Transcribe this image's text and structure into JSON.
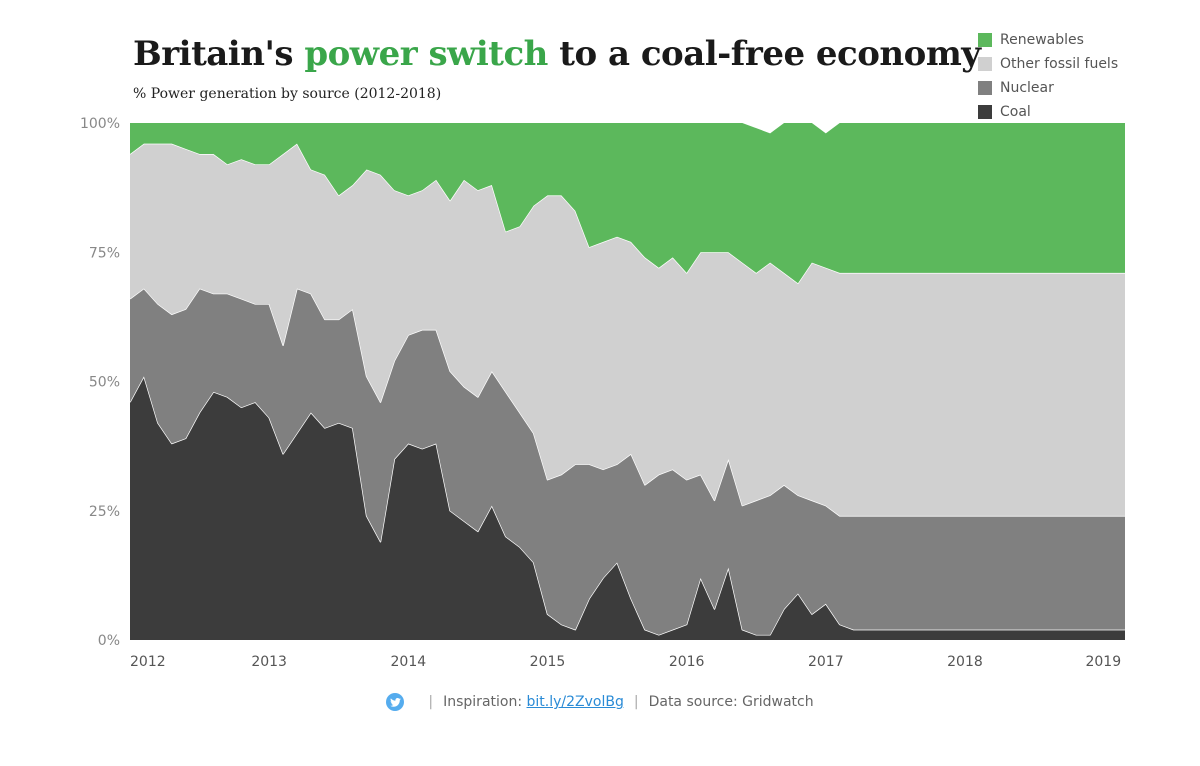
{
  "title": {
    "prefix": "Britain's",
    "highlight": "power switch",
    "suffix": "to a coal-free economy"
  },
  "colors": {
    "renewables": "#5cb85c",
    "other": "#d0d0d0",
    "nuclear": "#808080",
    "coal": "#3c3c3c",
    "highlight": "#3aa64a",
    "twitter": "#55acee"
  },
  "footer": {
    "twitter_icon": "twitter-bird-icon",
    "inspiration_label": "Inspiration:",
    "inspiration_link": "bit.ly/2ZvolBg",
    "separator": "|",
    "source_text": "Data source: Gridwatch"
  },
  "chart_data": {
    "type": "area",
    "stacked": true,
    "title": "Britain's power switch to a coal-free economy",
    "subtitle": "% Power generation by source (2012-2018)",
    "xlim": [
      2012,
      2019.15
    ],
    "ylim": [
      0,
      100
    ],
    "ytick_values": [
      0,
      25,
      50,
      75,
      100
    ],
    "ytick_labels": [
      "0%",
      "25%",
      "50%",
      "75%",
      "100%"
    ],
    "xtick_values": [
      2012,
      2013,
      2014,
      2015,
      2016,
      2017,
      2018,
      2019
    ],
    "xtick_labels": [
      "2012",
      "2013",
      "2014",
      "2015",
      "2016",
      "2017",
      "2018",
      "2019"
    ],
    "legend_position": "top-right",
    "legend_order": [
      "Renewables",
      "Other fossil fuels",
      "Nuclear",
      "Coal"
    ],
    "x": [
      2012.0,
      2012.1,
      2012.2,
      2012.3,
      2012.4,
      2012.5,
      2012.6,
      2012.7,
      2012.8,
      2012.9,
      2013.0,
      2013.1,
      2013.2,
      2013.3,
      2013.4,
      2013.5,
      2013.6,
      2013.7,
      2013.8,
      2013.9,
      2014.0,
      2014.1,
      2014.2,
      2014.3,
      2014.4,
      2014.5,
      2014.6,
      2014.7,
      2014.8,
      2014.9,
      2015.0,
      2015.1,
      2015.2,
      2015.3,
      2015.4,
      2015.5,
      2015.6,
      2015.7,
      2015.8,
      2015.9,
      2016.0,
      2016.1,
      2016.2,
      2016.3,
      2016.4,
      2016.5,
      2016.6,
      2016.7,
      2016.8,
      2016.9,
      2017.0,
      2017.1,
      2017.2,
      2017.3,
      2017.4,
      2017.5,
      2017.6,
      2017.7,
      2017.8,
      2017.9,
      2018.0,
      2018.1,
      2018.2,
      2018.3,
      2018.4,
      2018.5,
      2018.6,
      2018.7,
      2018.8,
      2018.9,
      2019.0,
      2019.1,
      2019.15
    ],
    "series": [
      {
        "name": "Coal",
        "color": "#3c3c3c",
        "values": [
          46,
          51,
          42,
          38,
          39,
          44,
          48,
          47,
          45,
          46,
          43,
          36,
          40,
          44,
          41,
          42,
          41,
          24,
          19,
          35,
          38,
          37,
          38,
          25,
          23,
          21,
          26,
          20,
          18,
          15,
          5,
          3,
          2,
          8,
          12,
          15,
          8,
          2,
          1,
          2,
          3,
          12,
          6,
          14,
          2,
          1,
          1,
          6,
          9,
          5,
          7,
          3,
          2,
          2,
          2,
          2,
          2,
          2,
          2,
          2,
          2,
          2,
          2,
          2,
          2,
          2,
          2,
          2,
          2,
          2,
          2,
          2,
          2
        ]
      },
      {
        "name": "Nuclear",
        "color": "#808080",
        "values": [
          20,
          17,
          23,
          25,
          25,
          24,
          19,
          20,
          21,
          19,
          22,
          21,
          28,
          23,
          21,
          20,
          23,
          27,
          27,
          19,
          21,
          23,
          22,
          27,
          26,
          26,
          26,
          28,
          26,
          25,
          26,
          29,
          32,
          26,
          21,
          19,
          28,
          28,
          31,
          31,
          28,
          20,
          21,
          21,
          24,
          26,
          27,
          24,
          19,
          22,
          19,
          21,
          22,
          22,
          22,
          22,
          22,
          22,
          22,
          22,
          22,
          22,
          22,
          22,
          22,
          22,
          22,
          22,
          22,
          22,
          22,
          22,
          22
        ]
      },
      {
        "name": "Other fossil fuels",
        "color": "#d0d0d0",
        "values": [
          28,
          28,
          31,
          33,
          31,
          26,
          27,
          25,
          27,
          27,
          27,
          37,
          28,
          24,
          28,
          24,
          24,
          40,
          44,
          33,
          27,
          27,
          29,
          33,
          40,
          40,
          36,
          31,
          36,
          44,
          55,
          54,
          49,
          42,
          44,
          44,
          41,
          44,
          40,
          41,
          40,
          43,
          48,
          40,
          47,
          44,
          45,
          41,
          41,
          46,
          46,
          47,
          47,
          47,
          47,
          47,
          47,
          47,
          47,
          47,
          47,
          47,
          47,
          47,
          47,
          47,
          47,
          47,
          47,
          47,
          47,
          47,
          47
        ]
      },
      {
        "name": "Renewables",
        "color": "#5cb85c",
        "values": [
          6,
          4,
          4,
          4,
          5,
          6,
          6,
          8,
          7,
          8,
          8,
          6,
          4,
          9,
          10,
          14,
          12,
          9,
          10,
          13,
          14,
          13,
          11,
          15,
          11,
          13,
          12,
          21,
          20,
          16,
          14,
          14,
          17,
          24,
          23,
          22,
          23,
          26,
          28,
          26,
          29,
          25,
          25,
          25,
          27,
          28,
          25,
          29,
          31,
          27,
          26,
          29,
          29,
          29,
          29,
          29,
          29,
          29,
          29,
          29,
          29,
          29,
          29,
          29,
          29,
          29,
          29,
          29,
          29,
          29,
          29,
          29,
          29
        ]
      }
    ]
  }
}
